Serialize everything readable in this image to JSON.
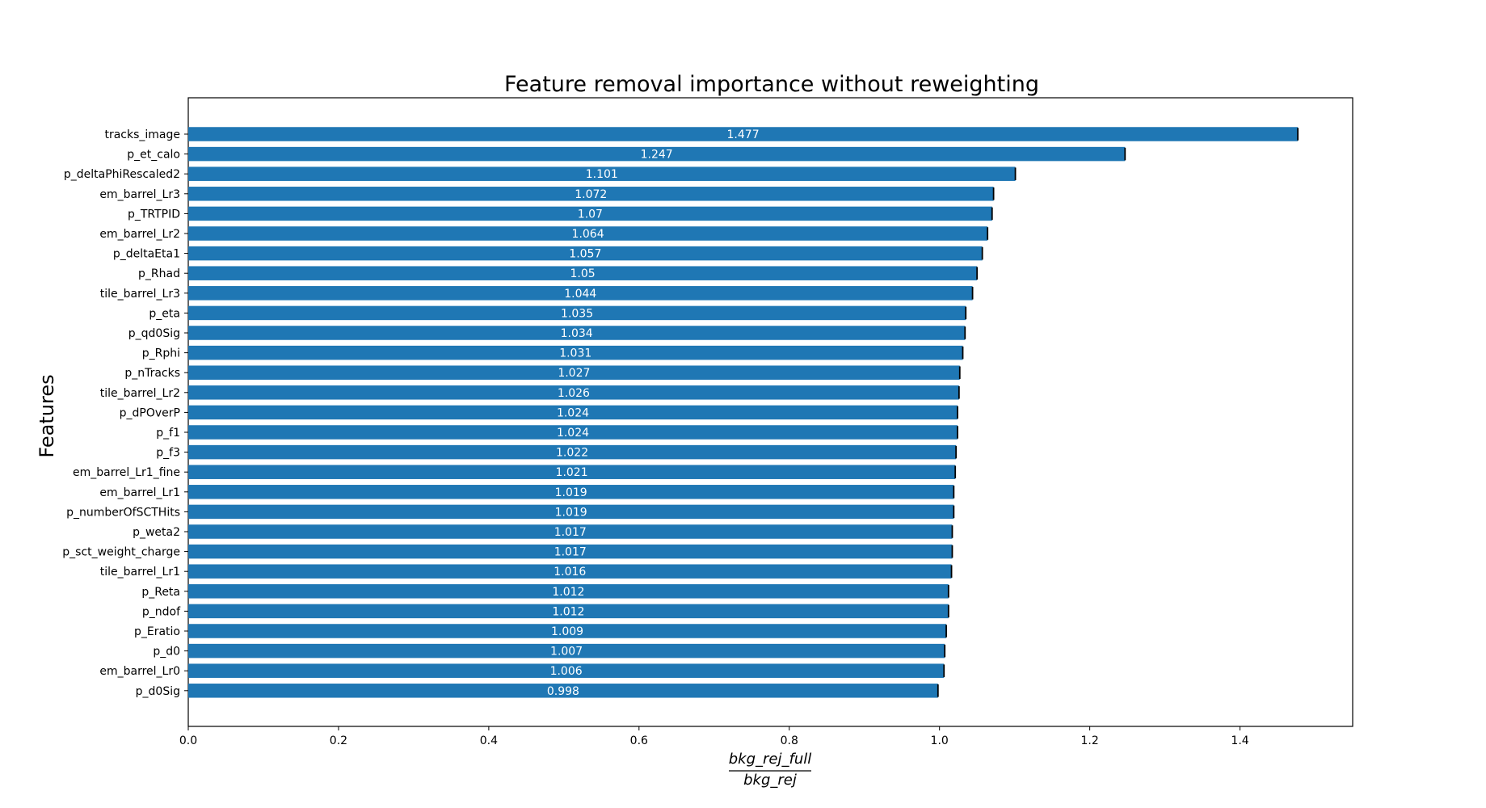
{
  "chart_data": {
    "type": "bar",
    "orientation": "horizontal",
    "title": "Feature removal importance without reweighting",
    "ylabel": "Features",
    "xlabel_numerator": "bkg_rej_full",
    "xlabel_denominator": "bkg_rej",
    "xlim": [
      0.0,
      1.55
    ],
    "xticks": [
      "0.0",
      "0.2",
      "0.4",
      "0.6",
      "0.8",
      "1.0",
      "1.2",
      "1.4"
    ],
    "bar_color": "#1f77b4",
    "error_color": "#000000",
    "categories": [
      "tracks_image",
      "p_et_calo",
      "p_deltaPhiRescaled2",
      "em_barrel_Lr3",
      "p_TRTPID",
      "em_barrel_Lr2",
      "p_deltaEta1",
      "p_Rhad",
      "tile_barrel_Lr3",
      "p_eta",
      "p_qd0Sig",
      "p_Rphi",
      "p_nTracks",
      "tile_barrel_Lr2",
      "p_dPOverP",
      "p_f1",
      "p_f3",
      "em_barrel_Lr1_fine",
      "em_barrel_Lr1",
      "p_numberOfSCTHits",
      "p_weta2",
      "p_sct_weight_charge",
      "tile_barrel_Lr1",
      "p_Reta",
      "p_ndof",
      "p_Eratio",
      "p_d0",
      "em_barrel_Lr0",
      "p_d0Sig"
    ],
    "values": [
      1.477,
      1.247,
      1.101,
      1.072,
      1.07,
      1.064,
      1.057,
      1.05,
      1.044,
      1.035,
      1.034,
      1.031,
      1.027,
      1.026,
      1.024,
      1.024,
      1.022,
      1.021,
      1.019,
      1.019,
      1.017,
      1.017,
      1.016,
      1.012,
      1.012,
      1.009,
      1.007,
      1.006,
      0.998
    ],
    "value_labels": [
      "1.477",
      "1.247",
      "1.101",
      "1.072",
      "1.07",
      "1.064",
      "1.057",
      "1.05",
      "1.044",
      "1.035",
      "1.034",
      "1.031",
      "1.027",
      "1.026",
      "1.024",
      "1.024",
      "1.022",
      "1.021",
      "1.019",
      "1.019",
      "1.017",
      "1.017",
      "1.016",
      "1.012",
      "1.012",
      "1.009",
      "1.007",
      "1.006",
      "0.998"
    ]
  }
}
